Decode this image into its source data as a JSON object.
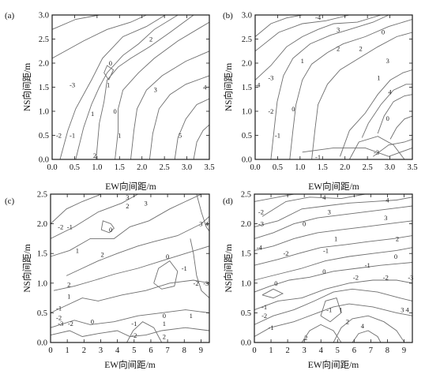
{
  "chart_data": [
    {
      "type": "contour",
      "panel_label": "(a)",
      "xlabel": "EW向间距/m",
      "ylabel": "NS向间距/m",
      "xlim": [
        0.0,
        3.5
      ],
      "ylim": [
        0.0,
        3.0
      ],
      "xticks": [
        "0.0",
        "0.5",
        "1.0",
        "1.5",
        "2.0",
        "2.5",
        "3.0",
        "3.5"
      ],
      "yticks": [
        "0.0",
        "0.5",
        "1.0",
        "1.5",
        "2.0",
        "2.5",
        "3.0"
      ],
      "contour_labels": [
        {
          "text": "2",
          "x": 2.2,
          "y": 2.5
        },
        {
          "text": "0",
          "x": 1.3,
          "y": 2.0
        },
        {
          "text": "-3",
          "x": 0.45,
          "y": 1.55
        },
        {
          "text": "1",
          "x": 1.25,
          "y": 1.55
        },
        {
          "text": "3",
          "x": 2.3,
          "y": 1.45
        },
        {
          "text": "4",
          "x": 3.4,
          "y": 1.5
        },
        {
          "text": "0",
          "x": 1.4,
          "y": 1.0
        },
        {
          "text": "1",
          "x": 0.9,
          "y": 0.95
        },
        {
          "text": "-2",
          "x": 0.15,
          "y": 0.5
        },
        {
          "text": "-1",
          "x": 0.45,
          "y": 0.5
        },
        {
          "text": "1",
          "x": 1.5,
          "y": 0.5
        },
        {
          "text": "5",
          "x": 2.85,
          "y": 0.5
        },
        {
          "text": "2",
          "x": 0.95,
          "y": 0.08
        }
      ]
    },
    {
      "type": "contour",
      "panel_label": "(b)",
      "xlabel": "EW向间距/m",
      "ylabel": "NS向间距/m",
      "xlim": [
        0.0,
        3.5
      ],
      "ylim": [
        0.0,
        3.0
      ],
      "xticks": [
        "0.0",
        "0.5",
        "1.0",
        "1.5",
        "2.0",
        "2.5",
        "3.0",
        "3.5"
      ],
      "yticks": [
        "0.0",
        "0.5",
        "1.0",
        "1.5",
        "2.0",
        "2.5",
        "3.0"
      ],
      "contour_labels": [
        {
          "text": "-4",
          "x": 1.4,
          "y": 2.95
        },
        {
          "text": "3",
          "x": 1.85,
          "y": 2.7
        },
        {
          "text": "2",
          "x": 1.85,
          "y": 2.3
        },
        {
          "text": "2",
          "x": 2.35,
          "y": 2.3
        },
        {
          "text": "0",
          "x": 2.85,
          "y": 2.65
        },
        {
          "text": "3",
          "x": 2.95,
          "y": 2.05
        },
        {
          "text": "1",
          "x": 2.75,
          "y": 1.7
        },
        {
          "text": "4",
          "x": 3.0,
          "y": 1.4
        },
        {
          "text": "0",
          "x": 2.95,
          "y": 0.85
        },
        {
          "text": "1",
          "x": 1.05,
          "y": 2.05
        },
        {
          "text": "-3",
          "x": 0.35,
          "y": 1.7
        },
        {
          "text": "-4",
          "x": 0.05,
          "y": 1.55
        },
        {
          "text": "-2",
          "x": 0.35,
          "y": 1.0
        },
        {
          "text": "0",
          "x": 0.85,
          "y": 1.05
        },
        {
          "text": "-1",
          "x": 0.5,
          "y": 0.5
        },
        {
          "text": "-1",
          "x": 1.4,
          "y": 0.05
        },
        {
          "text": "-3",
          "x": 2.7,
          "y": 0.15
        }
      ]
    },
    {
      "type": "contour",
      "panel_label": "(c)",
      "xlabel": "EW向间距/m",
      "ylabel": "NS向间距/m",
      "xlim": [
        0,
        9.5
      ],
      "ylim": [
        0.0,
        2.5
      ],
      "xticks": [
        "0",
        "1",
        "2",
        "3",
        "4",
        "5",
        "6",
        "7",
        "8",
        "9"
      ],
      "yticks": [
        "0.0",
        "0.5",
        "1.0",
        "1.5",
        "2.0",
        "2.5"
      ],
      "contour_labels": [
        {
          "text": "3",
          "x": 4.6,
          "y": 2.45
        },
        {
          "text": "2",
          "x": 4.6,
          "y": 2.3
        },
        {
          "text": "3",
          "x": 5.7,
          "y": 2.35
        },
        {
          "text": "-2",
          "x": 0.6,
          "y": 1.95
        },
        {
          "text": "-1",
          "x": 1.15,
          "y": 1.95
        },
        {
          "text": "0",
          "x": 3.6,
          "y": 1.9
        },
        {
          "text": "3",
          "x": 9.0,
          "y": 2.0
        },
        {
          "text": "4",
          "x": 9.35,
          "y": 2.0
        },
        {
          "text": "1",
          "x": 1.6,
          "y": 1.55
        },
        {
          "text": "2",
          "x": 3.1,
          "y": 1.48
        },
        {
          "text": "0",
          "x": 7.0,
          "y": 1.45
        },
        {
          "text": "-1",
          "x": 8.0,
          "y": 1.25
        },
        {
          "text": "-2",
          "x": 8.7,
          "y": 1.0
        },
        {
          "text": "-3",
          "x": 9.3,
          "y": 1.0
        },
        {
          "text": "2",
          "x": 1.1,
          "y": 0.98
        },
        {
          "text": "1",
          "x": 1.1,
          "y": 0.78
        },
        {
          "text": "-1",
          "x": 0.5,
          "y": 0.58
        },
        {
          "text": "-2",
          "x": 0.5,
          "y": 0.42
        },
        {
          "text": "-3",
          "x": 0.6,
          "y": 0.32
        },
        {
          "text": "-2",
          "x": 1.2,
          "y": 0.32
        },
        {
          "text": "0",
          "x": 2.5,
          "y": 0.35
        },
        {
          "text": "-1",
          "x": 5.0,
          "y": 0.32
        },
        {
          "text": "-2",
          "x": 5.0,
          "y": 0.12
        },
        {
          "text": "0",
          "x": 6.8,
          "y": 0.45
        },
        {
          "text": "1",
          "x": 6.8,
          "y": 0.32
        },
        {
          "text": "1",
          "x": 8.4,
          "y": 0.45
        },
        {
          "text": "2",
          "x": 6.8,
          "y": 0.1
        }
      ]
    },
    {
      "type": "contour",
      "panel_label": "(d)",
      "xlabel": "EW向间距/m",
      "ylabel": "NS向间距/m",
      "xlim": [
        0,
        9.5
      ],
      "ylim": [
        0.0,
        2.5
      ],
      "xticks": [
        "0",
        "1",
        "2",
        "3",
        "4",
        "5",
        "6",
        "7",
        "8",
        "9"
      ],
      "yticks": [
        "0.0",
        "0.5",
        "1.0",
        "1.5",
        "2.0",
        "2.5"
      ],
      "contour_labels": [
        {
          "text": "4",
          "x": 4.2,
          "y": 2.45
        },
        {
          "text": "4",
          "x": 8.0,
          "y": 2.4
        },
        {
          "text": "3",
          "x": 4.5,
          "y": 2.2
        },
        {
          "text": "3",
          "x": 7.9,
          "y": 2.1
        },
        {
          "text": "-2",
          "x": 0.4,
          "y": 2.2
        },
        {
          "text": "-3",
          "x": 0.4,
          "y": 2.0
        },
        {
          "text": "0",
          "x": 3.0,
          "y": 2.0
        },
        {
          "text": "1",
          "x": 4.9,
          "y": 1.75
        },
        {
          "text": "2",
          "x": 8.6,
          "y": 1.75
        },
        {
          "text": "-4",
          "x": 0.3,
          "y": 1.6
        },
        {
          "text": "-2",
          "x": 1.9,
          "y": 1.5
        },
        {
          "text": "-1",
          "x": 4.3,
          "y": 1.55
        },
        {
          "text": "0",
          "x": 8.5,
          "y": 1.45
        },
        {
          "text": "-1",
          "x": 6.8,
          "y": 1.3
        },
        {
          "text": "0",
          "x": 4.2,
          "y": 1.2
        },
        {
          "text": "0",
          "x": 1.3,
          "y": 1.0
        },
        {
          "text": "-2",
          "x": 6.1,
          "y": 1.1
        },
        {
          "text": "-2",
          "x": 7.9,
          "y": 1.1
        },
        {
          "text": "-3",
          "x": 9.4,
          "y": 1.1
        },
        {
          "text": "-1",
          "x": 0.6,
          "y": 0.6
        },
        {
          "text": "-2",
          "x": 0.6,
          "y": 0.45
        },
        {
          "text": "-1",
          "x": 1.0,
          "y": 0.25
        },
        {
          "text": "-1",
          "x": 4.5,
          "y": 0.55
        },
        {
          "text": "1",
          "x": 5.2,
          "y": 0.55
        },
        {
          "text": "2",
          "x": 5.6,
          "y": 0.35
        },
        {
          "text": "3",
          "x": 8.9,
          "y": 0.55
        },
        {
          "text": "4",
          "x": 9.2,
          "y": 0.55
        },
        {
          "text": "4",
          "x": 6.5,
          "y": 0.28
        },
        {
          "text": "2",
          "x": 3.1,
          "y": 0.08
        }
      ]
    }
  ]
}
